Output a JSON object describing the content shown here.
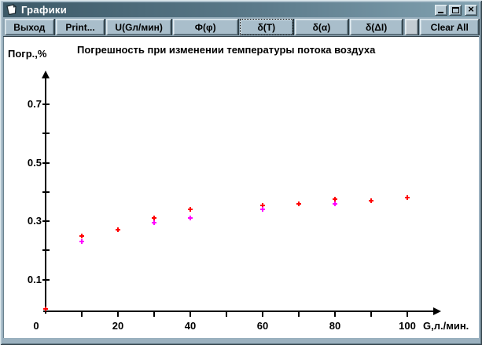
{
  "window": {
    "title": "Графики",
    "controls": [
      {
        "name": "minimize",
        "glyph": ""
      },
      {
        "name": "maximize",
        "glyph": ""
      },
      {
        "name": "close",
        "glyph": "×"
      }
    ]
  },
  "toolbar": {
    "buttons": [
      {
        "name": "exit",
        "label": "Выход"
      },
      {
        "name": "print",
        "label": "Print..."
      },
      {
        "name": "u-g-flow",
        "label": "U(Gл/мин)"
      },
      {
        "name": "phi",
        "label": "Ф(φ)"
      },
      {
        "name": "delta-t",
        "label": "δ(T)",
        "focused": true
      },
      {
        "name": "delta-alpha",
        "label": "δ(α)"
      },
      {
        "name": "delta-di",
        "label": "δ(ΔI)"
      },
      {
        "name": "spacer",
        "label": "",
        "spacer": true
      },
      {
        "name": "clear-all",
        "label": "Clear All"
      }
    ]
  },
  "chart_data": {
    "type": "scatter",
    "title": "Погрешность при изменении температуры потока воздуха",
    "ylabel": "Погр.,%",
    "xlabel": "G,л./мин.",
    "xlim": [
      0,
      110
    ],
    "ylim": [
      0,
      0.8
    ],
    "grid": false,
    "legend": false,
    "x_ticks": [
      {
        "v": 0,
        "label": "0"
      },
      {
        "v": 10,
        "label": ""
      },
      {
        "v": 20,
        "label": "20"
      },
      {
        "v": 30,
        "label": ""
      },
      {
        "v": 40,
        "label": "40"
      },
      {
        "v": 50,
        "label": ""
      },
      {
        "v": 60,
        "label": "60"
      },
      {
        "v": 70,
        "label": ""
      },
      {
        "v": 80,
        "label": "80"
      },
      {
        "v": 90,
        "label": ""
      },
      {
        "v": 100,
        "label": "100"
      }
    ],
    "y_ticks": [
      {
        "v": 0.1,
        "label": "0.1"
      },
      {
        "v": 0.2,
        "label": ""
      },
      {
        "v": 0.3,
        "label": "0.3"
      },
      {
        "v": 0.4,
        "label": ""
      },
      {
        "v": 0.5,
        "label": "0.5"
      },
      {
        "v": 0.6,
        "label": ""
      },
      {
        "v": 0.7,
        "label": "0.7"
      }
    ],
    "series": [
      {
        "name": "red",
        "color": "#ff0000",
        "points": [
          [
            0,
            0
          ],
          [
            10,
            0.25
          ],
          [
            20,
            0.27
          ],
          [
            30,
            0.31
          ],
          [
            40,
            0.34
          ],
          [
            60,
            0.355
          ],
          [
            70,
            0.36
          ],
          [
            80,
            0.375
          ],
          [
            90,
            0.37
          ],
          [
            100,
            0.38
          ]
        ]
      },
      {
        "name": "magenta",
        "color": "#ff00ff",
        "points": [
          [
            10,
            0.23
          ],
          [
            30,
            0.295
          ],
          [
            40,
            0.31
          ],
          [
            60,
            0.34
          ],
          [
            80,
            0.36
          ]
        ]
      }
    ]
  },
  "colors": {
    "titlebar_left": "#3c5967",
    "titlebar_right": "#82a2b1",
    "button_face": "#a9becb",
    "series_red": "#ff0000",
    "series_magenta": "#ff00ff"
  }
}
